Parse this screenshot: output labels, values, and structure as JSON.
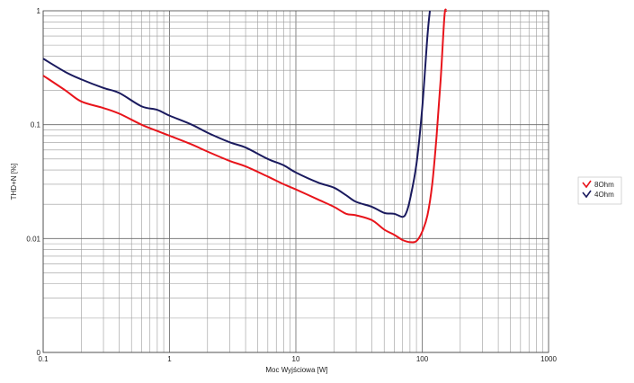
{
  "chart_data": {
    "type": "line",
    "title": "",
    "xlabel": "Moc Wyjściowa [W]",
    "ylabel": "THD+N [%]",
    "x_scale": "log",
    "y_scale": "log",
    "xlim": [
      0.1,
      1000
    ],
    "ylim": [
      0.001,
      1
    ],
    "x_ticks": [
      0.1,
      1,
      10,
      100,
      1000
    ],
    "x_tick_labels": [
      "0.1",
      "1",
      "10",
      "100",
      "1000"
    ],
    "y_ticks": [
      0.001,
      0.01,
      0.1,
      1
    ],
    "y_tick_labels": [
      "0",
      "0.01",
      "0.1",
      "1"
    ],
    "grid": true,
    "legend_position": "right",
    "series": [
      {
        "name": "8Ohm",
        "color": "#e8141b",
        "points": [
          [
            0.1,
            0.27
          ],
          [
            0.15,
            0.2
          ],
          [
            0.2,
            0.16
          ],
          [
            0.3,
            0.14
          ],
          [
            0.4,
            0.125
          ],
          [
            0.6,
            0.1
          ],
          [
            0.8,
            0.088
          ],
          [
            1,
            0.08
          ],
          [
            1.5,
            0.067
          ],
          [
            2,
            0.058
          ],
          [
            3,
            0.048
          ],
          [
            4,
            0.043
          ],
          [
            6,
            0.035
          ],
          [
            8,
            0.03
          ],
          [
            10,
            0.027
          ],
          [
            15,
            0.022
          ],
          [
            20,
            0.019
          ],
          [
            25,
            0.0165
          ],
          [
            30,
            0.016
          ],
          [
            40,
            0.0145
          ],
          [
            50,
            0.012
          ],
          [
            60,
            0.0108
          ],
          [
            70,
            0.0097
          ],
          [
            80,
            0.0093
          ],
          [
            90,
            0.0095
          ],
          [
            100,
            0.0115
          ],
          [
            110,
            0.016
          ],
          [
            120,
            0.03
          ],
          [
            130,
            0.08
          ],
          [
            140,
            0.25
          ],
          [
            150,
            0.9
          ],
          [
            155,
            1
          ]
        ]
      },
      {
        "name": "4Ohm",
        "color": "#1a1a5e",
        "points": [
          [
            0.1,
            0.38
          ],
          [
            0.15,
            0.29
          ],
          [
            0.2,
            0.25
          ],
          [
            0.3,
            0.21
          ],
          [
            0.4,
            0.19
          ],
          [
            0.6,
            0.145
          ],
          [
            0.8,
            0.135
          ],
          [
            1,
            0.12
          ],
          [
            1.5,
            0.1
          ],
          [
            2,
            0.085
          ],
          [
            3,
            0.07
          ],
          [
            4,
            0.063
          ],
          [
            6,
            0.05
          ],
          [
            8,
            0.044
          ],
          [
            10,
            0.038
          ],
          [
            15,
            0.031
          ],
          [
            20,
            0.028
          ],
          [
            25,
            0.024
          ],
          [
            30,
            0.021
          ],
          [
            40,
            0.019
          ],
          [
            50,
            0.0168
          ],
          [
            60,
            0.0165
          ],
          [
            70,
            0.0155
          ],
          [
            75,
            0.017
          ],
          [
            80,
            0.022
          ],
          [
            90,
            0.045
          ],
          [
            100,
            0.14
          ],
          [
            110,
            0.6
          ],
          [
            115,
            1
          ]
        ]
      }
    ]
  }
}
